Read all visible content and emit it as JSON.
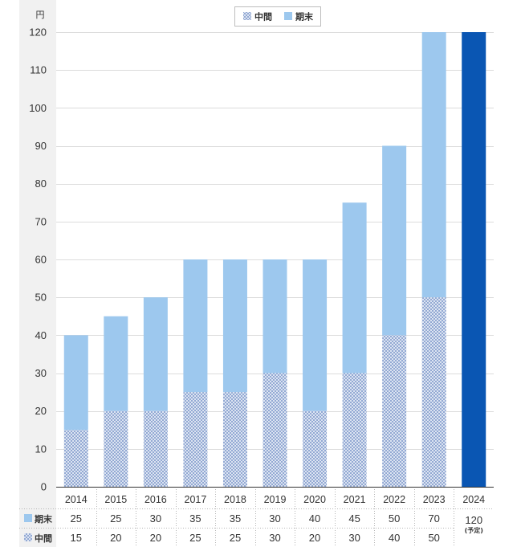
{
  "chart_data": {
    "type": "bar",
    "stacked": true,
    "unit": "円",
    "categories": [
      "2014",
      "2015",
      "2016",
      "2017",
      "2018",
      "2019",
      "2020",
      "2021",
      "2022",
      "2023",
      "2024"
    ],
    "series": [
      {
        "name": "中間",
        "color": "#93a9d3",
        "color_alt": "#dce4f2",
        "values": [
          15,
          20,
          20,
          25,
          25,
          30,
          20,
          30,
          40,
          50,
          null
        ]
      },
      {
        "name": "期末",
        "color": "#9dc8ee",
        "values": [
          25,
          25,
          30,
          35,
          35,
          30,
          40,
          45,
          50,
          70,
          null
        ]
      }
    ],
    "forecast": {
      "value": 120,
      "note": "(予定)",
      "color": "#0a56b3"
    },
    "ylim": [
      0,
      120
    ],
    "yticks": [
      0,
      10,
      20,
      30,
      40,
      50,
      60,
      70,
      80,
      90,
      100,
      110,
      120
    ],
    "grid": true,
    "legend": {
      "position": "top-center"
    }
  }
}
